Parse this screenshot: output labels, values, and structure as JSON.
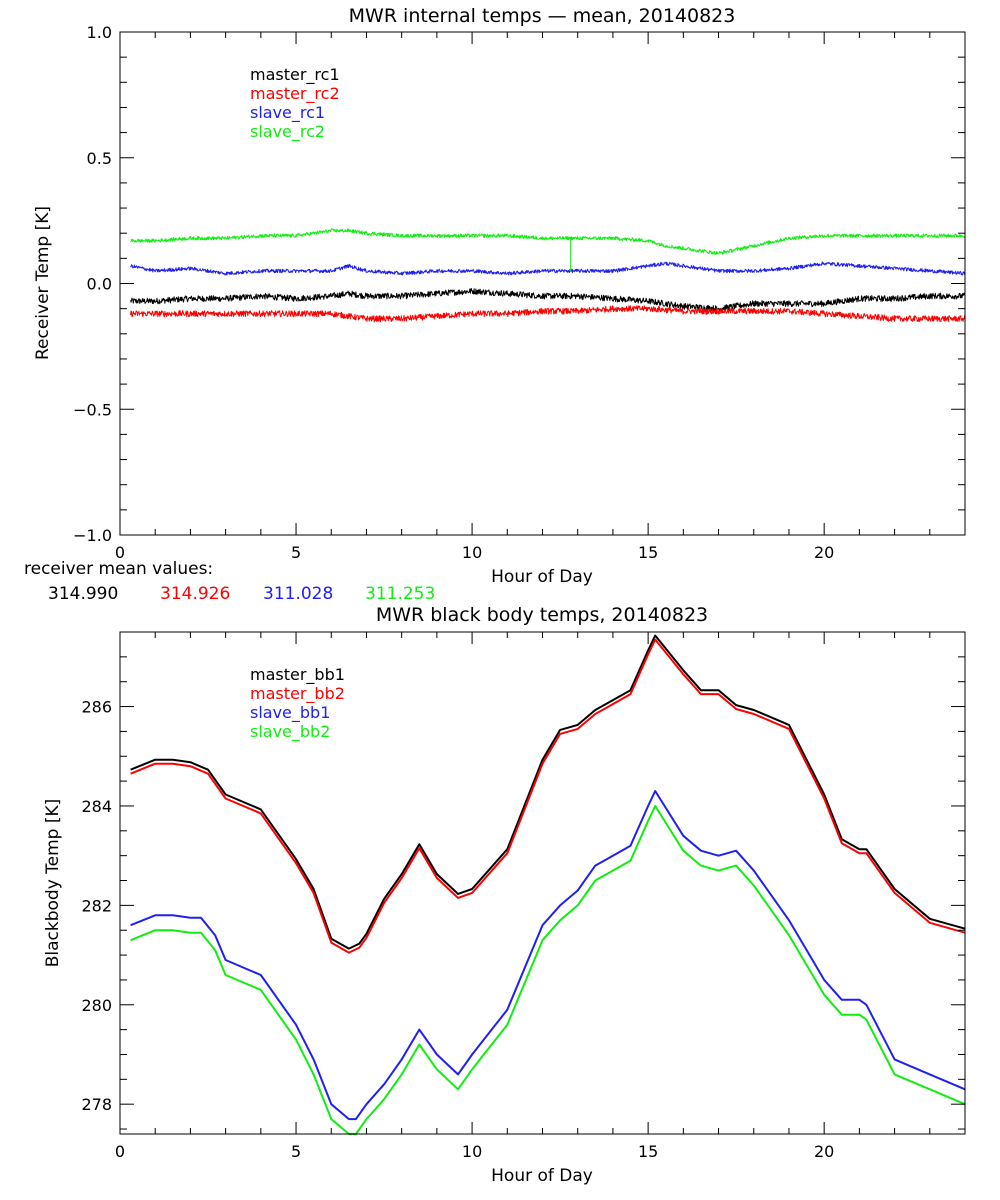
{
  "colors": {
    "black": "#000000",
    "red": "#ff0000",
    "blue": "#2020ee",
    "green": "#10ee10",
    "axis": "#000000",
    "background": "#ffffff"
  },
  "chart_data": [
    {
      "type": "line",
      "title": "MWR internal temps — mean, 20140823",
      "xlabel": "Hour of Day",
      "ylabel": "Receiver Temp [K]",
      "xlim": [
        0,
        24
      ],
      "ylim": [
        -1.0,
        1.0
      ],
      "xticks": [
        0,
        5,
        10,
        15,
        20
      ],
      "xtick_labels": [
        "0",
        "5",
        "10",
        "15",
        "20"
      ],
      "yticks": [
        -1.0,
        -0.5,
        0.0,
        0.5,
        1.0
      ],
      "ytick_labels": [
        "−1.0",
        "−0.5",
        "0.0",
        "0.5",
        "1.0"
      ],
      "grid": false,
      "legend_position": "top-left",
      "series": [
        {
          "name": "master_rc1",
          "color": "#000000",
          "noise": 0.012,
          "x": [
            0.3,
            1,
            2,
            3,
            4,
            5,
            6,
            6.5,
            7,
            8,
            9,
            10,
            11,
            12,
            13,
            14,
            15,
            16,
            17,
            18,
            19,
            20,
            21,
            22,
            23,
            24
          ],
          "y": [
            -0.07,
            -0.07,
            -0.06,
            -0.06,
            -0.05,
            -0.06,
            -0.05,
            -0.04,
            -0.05,
            -0.05,
            -0.04,
            -0.03,
            -0.04,
            -0.05,
            -0.05,
            -0.06,
            -0.07,
            -0.09,
            -0.1,
            -0.08,
            -0.08,
            -0.08,
            -0.06,
            -0.06,
            -0.05,
            -0.05
          ]
        },
        {
          "name": "master_rc2",
          "color": "#ff0000",
          "noise": 0.012,
          "x": [
            0.3,
            1,
            2,
            3,
            4,
            5,
            6,
            7,
            8,
            9,
            10,
            11,
            12,
            13,
            14,
            15,
            16,
            17,
            18,
            19,
            20,
            21,
            22,
            23,
            24
          ],
          "y": [
            -0.12,
            -0.12,
            -0.12,
            -0.12,
            -0.12,
            -0.12,
            -0.12,
            -0.14,
            -0.14,
            -0.13,
            -0.12,
            -0.12,
            -0.11,
            -0.11,
            -0.1,
            -0.1,
            -0.11,
            -0.11,
            -0.11,
            -0.11,
            -0.12,
            -0.13,
            -0.14,
            -0.14,
            -0.14
          ]
        },
        {
          "name": "slave_rc1",
          "color": "#2020ee",
          "noise": 0.007,
          "x": [
            0.3,
            1,
            2,
            3,
            4,
            5,
            6,
            6.5,
            7,
            8,
            9,
            10,
            11,
            12,
            12.8,
            13,
            14,
            15,
            15.5,
            16,
            17,
            18,
            19,
            20,
            21,
            22,
            23,
            24
          ],
          "y": [
            0.07,
            0.05,
            0.06,
            0.04,
            0.05,
            0.05,
            0.05,
            0.07,
            0.05,
            0.04,
            0.05,
            0.05,
            0.04,
            0.05,
            0.05,
            0.05,
            0.05,
            0.07,
            0.08,
            0.07,
            0.05,
            0.05,
            0.06,
            0.08,
            0.07,
            0.06,
            0.05,
            0.04
          ]
        },
        {
          "name": "slave_rc2",
          "color": "#10ee10",
          "noise": 0.007,
          "spike": {
            "x": 12.8,
            "y": 0.05
          },
          "x": [
            0.3,
            1,
            2,
            3,
            4,
            5,
            6,
            6.5,
            7,
            8,
            9,
            10,
            11,
            12,
            13,
            14,
            15,
            15.5,
            16,
            17,
            18,
            19,
            20,
            21,
            22,
            23,
            24
          ],
          "y": [
            0.17,
            0.17,
            0.18,
            0.18,
            0.19,
            0.19,
            0.21,
            0.21,
            0.2,
            0.19,
            0.19,
            0.19,
            0.19,
            0.18,
            0.18,
            0.18,
            0.17,
            0.15,
            0.14,
            0.12,
            0.15,
            0.18,
            0.19,
            0.19,
            0.19,
            0.19,
            0.19
          ]
        }
      ],
      "mean_values_label": "receiver mean values:",
      "mean_values": [
        {
          "value": "314.990",
          "color": "#000000"
        },
        {
          "value": "314.926",
          "color": "#ff0000"
        },
        {
          "value": "311.028",
          "color": "#2020ee"
        },
        {
          "value": "311.253",
          "color": "#10ee10"
        }
      ]
    },
    {
      "type": "line",
      "title": "MWR black body temps, 20140823",
      "xlabel": "Hour of Day",
      "ylabel": "Blackbody Temp [K]",
      "xlim": [
        0,
        24
      ],
      "ylim": [
        277.4,
        287.5
      ],
      "xticks": [
        0,
        5,
        10,
        15,
        20
      ],
      "xtick_labels": [
        "0",
        "5",
        "10",
        "15",
        "20"
      ],
      "yticks": [
        278,
        280,
        282,
        284,
        286
      ],
      "ytick_labels": [
        "278",
        "280",
        "282",
        "284",
        "286"
      ],
      "grid": false,
      "legend_position": "top-left",
      "series": [
        {
          "name": "master_bb1",
          "color": "#000000",
          "offset_y": 0.03,
          "x": [
            0.3,
            1,
            1.5,
            2,
            2.5,
            3,
            4,
            5,
            5.5,
            6,
            6.5,
            6.8,
            7,
            7.5,
            8,
            8.5,
            9,
            9.6,
            10,
            11,
            12,
            12.5,
            13,
            13.5,
            14,
            14.5,
            15,
            15.2,
            16,
            16.5,
            17,
            17.5,
            18,
            19,
            20,
            20.5,
            21,
            21.2,
            22,
            23,
            24
          ],
          "y": [
            284.7,
            284.9,
            284.9,
            284.85,
            284.7,
            284.2,
            283.9,
            282.9,
            282.3,
            281.3,
            281.1,
            281.2,
            281.4,
            282.1,
            282.6,
            283.2,
            282.6,
            282.2,
            282.3,
            283.1,
            284.9,
            285.5,
            285.6,
            285.9,
            286.1,
            286.3,
            287.1,
            287.4,
            286.7,
            286.3,
            286.3,
            286.0,
            285.9,
            285.6,
            284.2,
            283.3,
            283.1,
            283.1,
            282.3,
            281.7,
            281.5
          ]
        },
        {
          "name": "master_bb2",
          "color": "#ff0000",
          "offset_y": 0.0,
          "x": [
            0.3,
            1,
            1.5,
            2,
            2.5,
            3,
            4,
            5,
            5.5,
            6,
            6.5,
            6.8,
            7,
            7.5,
            8,
            8.5,
            9,
            9.6,
            10,
            11,
            12,
            12.5,
            13,
            13.5,
            14,
            14.5,
            15,
            15.2,
            16,
            16.5,
            17,
            17.5,
            18,
            19,
            20,
            20.5,
            21,
            21.2,
            22,
            23,
            24
          ],
          "y": [
            284.65,
            284.85,
            284.85,
            284.8,
            284.65,
            284.15,
            283.85,
            282.85,
            282.25,
            281.25,
            281.05,
            281.15,
            281.35,
            282.05,
            282.55,
            283.15,
            282.55,
            282.15,
            282.25,
            283.05,
            284.85,
            285.45,
            285.55,
            285.85,
            286.05,
            286.25,
            287.05,
            287.35,
            286.65,
            286.25,
            286.25,
            285.95,
            285.85,
            285.55,
            284.15,
            283.25,
            283.05,
            283.05,
            282.25,
            281.65,
            281.45
          ]
        },
        {
          "name": "slave_bb1",
          "color": "#2020ee",
          "offset_y": 0.0,
          "x": [
            0.3,
            1,
            1.5,
            2,
            2.3,
            2.7,
            3,
            4,
            5,
            5.5,
            6,
            6.5,
            6.7,
            7,
            7.5,
            8,
            8.5,
            9,
            9.6,
            10,
            11,
            12,
            12.5,
            13,
            13.5,
            14,
            14.5,
            15,
            15.2,
            16,
            16.5,
            17,
            17.5,
            18,
            19,
            20,
            20.5,
            21,
            21.2,
            22,
            23,
            24
          ],
          "y": [
            281.6,
            281.8,
            281.8,
            281.75,
            281.75,
            281.4,
            280.9,
            280.6,
            279.6,
            278.9,
            278.0,
            277.7,
            277.7,
            278.0,
            278.4,
            278.9,
            279.5,
            279.0,
            278.6,
            279.0,
            279.9,
            281.6,
            282.0,
            282.3,
            282.8,
            283.0,
            283.2,
            284.0,
            284.3,
            283.4,
            283.1,
            283.0,
            283.1,
            282.7,
            281.7,
            280.5,
            280.1,
            280.1,
            280.0,
            278.9,
            278.6,
            278.3
          ]
        },
        {
          "name": "slave_bb2",
          "color": "#10ee10",
          "offset_y": 0.0,
          "x": [
            0.3,
            1,
            1.5,
            2,
            2.3,
            2.7,
            3,
            4,
            5,
            5.5,
            6,
            6.5,
            6.7,
            7,
            7.5,
            8,
            8.5,
            9,
            9.6,
            10,
            11,
            12,
            12.5,
            13,
            13.5,
            14,
            14.5,
            15,
            15.2,
            16,
            16.5,
            17,
            17.5,
            18,
            19,
            20,
            20.5,
            21,
            21.2,
            22,
            23,
            24
          ],
          "y": [
            281.3,
            281.5,
            281.5,
            281.45,
            281.45,
            281.1,
            280.6,
            280.3,
            279.3,
            278.6,
            277.7,
            277.4,
            277.4,
            277.7,
            278.1,
            278.6,
            279.2,
            278.7,
            278.3,
            278.7,
            279.6,
            281.3,
            281.7,
            282.0,
            282.5,
            282.7,
            282.9,
            283.7,
            284.0,
            283.1,
            282.8,
            282.7,
            282.8,
            282.4,
            281.4,
            280.2,
            279.8,
            279.8,
            279.7,
            278.6,
            278.3,
            278.0
          ]
        }
      ]
    }
  ]
}
